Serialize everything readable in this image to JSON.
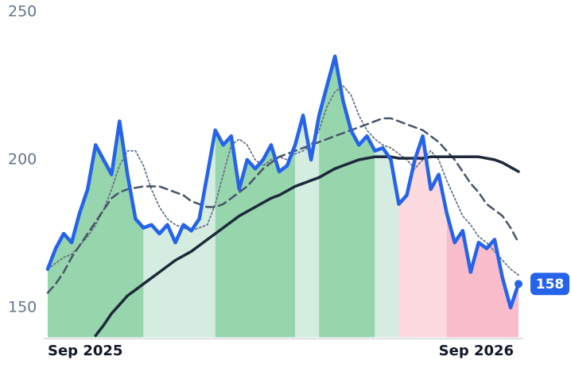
{
  "chart_data": {
    "type": "line",
    "categories": [
      "Sep 2025",
      null,
      null,
      null,
      null,
      null,
      null,
      null,
      null,
      null,
      null,
      null,
      null,
      null,
      null,
      null,
      null,
      null,
      null,
      null,
      null,
      null,
      null,
      null,
      null,
      null,
      null,
      null,
      null,
      null,
      null,
      null,
      null,
      null,
      null,
      null,
      null,
      null,
      null,
      null,
      null,
      null,
      null,
      null,
      null,
      null,
      null,
      null,
      null,
      "Sep 2026",
      null,
      null,
      null,
      null,
      null,
      null,
      null,
      null,
      null,
      null
    ],
    "ylim": [
      140,
      250
    ],
    "yticks": [
      150,
      200,
      250
    ],
    "series": [
      {
        "color": "#2563eb",
        "style": "solid",
        "width": 4.5,
        "values": [
          163,
          170,
          175,
          172,
          182,
          190,
          205,
          200,
          195,
          213,
          195,
          180,
          177,
          178,
          175,
          178,
          172,
          178,
          176,
          180,
          195,
          210,
          205,
          208,
          190,
          200,
          197,
          200,
          205,
          196,
          198,
          205,
          215,
          200,
          215,
          225,
          235,
          220,
          210,
          205,
          208,
          203,
          204,
          200,
          185,
          188,
          200,
          208,
          190,
          195,
          182,
          172,
          176,
          162,
          172,
          170,
          173,
          160,
          150,
          158
        ]
      },
      {
        "color": "#475569",
        "style": "dashed",
        "width": 2.5,
        "values": [
          155,
          158,
          162,
          167,
          171,
          175,
          179,
          183,
          187,
          189,
          190,
          190.5,
          191,
          191,
          191,
          190,
          189,
          188,
          186,
          185,
          184,
          184,
          185,
          187,
          189,
          191,
          194,
          197,
          199,
          201,
          202,
          203,
          204,
          205,
          206,
          207,
          208,
          209,
          210,
          211,
          212,
          213,
          214,
          214,
          213,
          212,
          211,
          210,
          208,
          206,
          203,
          200,
          196,
          192,
          189,
          185,
          183,
          181,
          177,
          172
        ]
      },
      {
        "color": "#64748b",
        "style": "dotted",
        "width": 1.8,
        "values": [
          163,
          165,
          167,
          168,
          171,
          174,
          178,
          183,
          190,
          198,
          203,
          203,
          198,
          190,
          184,
          180,
          178,
          177,
          176,
          177,
          178,
          185,
          195,
          205,
          207,
          205,
          200,
          198,
          200,
          201,
          200,
          202,
          203,
          205,
          210,
          218,
          223,
          225,
          222,
          215,
          210,
          207,
          205,
          204,
          202,
          200,
          197,
          200,
          203,
          200,
          193,
          187,
          181,
          178,
          174,
          172,
          169,
          166,
          163,
          161
        ]
      },
      {
        "color": "#1e293b",
        "style": "solid",
        "width": 3.5,
        "values": [
          null,
          null,
          null,
          null,
          null,
          null,
          140.5,
          144,
          148,
          151,
          154,
          156,
          158,
          160,
          162,
          164,
          166,
          167.5,
          169,
          171,
          173,
          175,
          177,
          179,
          181,
          182.5,
          184,
          185.5,
          187,
          188,
          189.5,
          191,
          192,
          193,
          194,
          195.5,
          197,
          198,
          199,
          200,
          200.5,
          201,
          201,
          201,
          200.5,
          200.5,
          200.5,
          200.5,
          201,
          201,
          201,
          201,
          201,
          201,
          201,
          200.5,
          200,
          199,
          197.5,
          196
        ]
      }
    ],
    "regions": [
      {
        "from": 0,
        "to": 12,
        "color": "#97d5ad"
      },
      {
        "from": 12,
        "to": 21,
        "color": "#d4ede0"
      },
      {
        "from": 21,
        "to": 31,
        "color": "#97d5ad"
      },
      {
        "from": 31,
        "to": 34,
        "color": "#d4ede0"
      },
      {
        "from": 34,
        "to": 41,
        "color": "#97d5ad"
      },
      {
        "from": 41,
        "to": 44,
        "color": "#d4ede0"
      },
      {
        "from": 44,
        "to": 50,
        "color": "#fdd9e0"
      },
      {
        "from": 50,
        "to": 59,
        "color": "#f9bccb"
      }
    ]
  }
}
